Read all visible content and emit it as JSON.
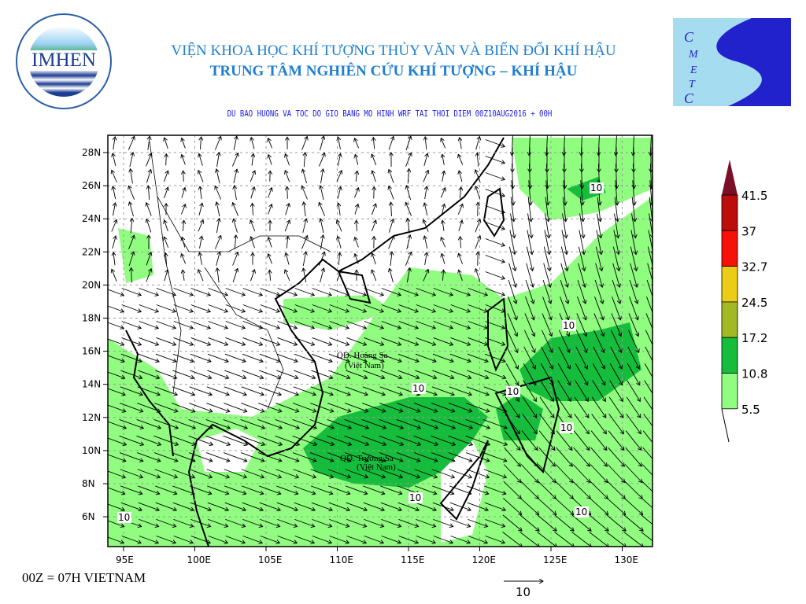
{
  "header": {
    "institute": "VIỆN KHOA HỌC KHÍ TƯỢNG THỦY VĂN VÀ BIẾN ĐỔI KHÍ HẬU",
    "center": "TRUNG TÂM NGHIÊN CỨU KHÍ TƯỢNG – KHÍ HẬU",
    "subtitle": "DU BAO HUONG VA TOC DO GIO BANG MO HINH WRF TAI THOI DIEM  00Z10AUG2016 + 00H"
  },
  "logos": {
    "left": {
      "text": "IMHEN",
      "ring_text": "VIỆN KHOA HỌC KHÍ TƯỢNG THỦY VĂN VÀ BIẾN ĐỔI KHÍ HẬU"
    },
    "right": {
      "text": "CMETC"
    }
  },
  "map": {
    "lon_ticks": [
      "95E",
      "100E",
      "105E",
      "110E",
      "115E",
      "120E",
      "125E",
      "130E"
    ],
    "lat_ticks": [
      "28N",
      "26N",
      "24N",
      "22N",
      "20N",
      "18N",
      "16N",
      "14N",
      "12N",
      "10N",
      "8N",
      "6N"
    ],
    "labels": {
      "hoang_sa": "QĐ. Hoàng Sa",
      "hoang_sa_sub": "(Việt Nam)",
      "truong_sa": "QĐ. Trường Sa",
      "truong_sa_sub": "(Việt Nam)"
    },
    "contour_labels": [
      "10",
      "10",
      "10",
      "10",
      "10",
      "10",
      "10",
      "10"
    ]
  },
  "legend": {
    "levels": [
      "41.5",
      "37",
      "32.7",
      "24.5",
      "17.2",
      "10.8",
      "5.5"
    ],
    "colors": [
      "#7a0f28",
      "#bb0e0a",
      "#f51208",
      "#eccc16",
      "#a2b924",
      "#16bd3c",
      "#90fc80"
    ]
  },
  "footer": {
    "timezone_note": "00Z = 07H VIETNAM",
    "reference_vector": "10"
  }
}
